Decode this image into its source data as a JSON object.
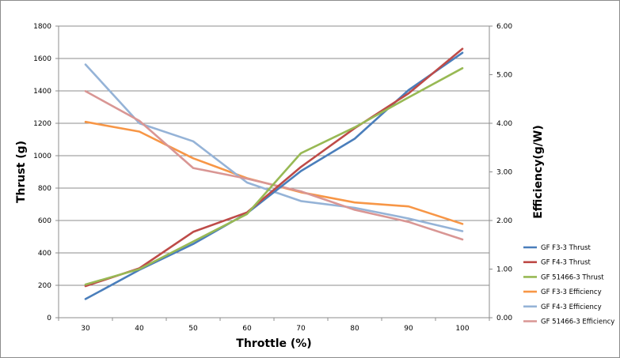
{
  "chart_data": {
    "type": "line",
    "xlabel": "Throttle  (%)",
    "ylabel_left": "Thrust  (g)",
    "ylabel_right": "Efficiency(g/W)",
    "categories": [
      "30",
      "40",
      "50",
      "60",
      "70",
      "80",
      "90",
      "100"
    ],
    "ylim_left": [
      0,
      1800
    ],
    "ylim_right": [
      0,
      6
    ],
    "yticks_left": [
      "0",
      "200",
      "400",
      "600",
      "800",
      "1000",
      "1200",
      "1400",
      "1600",
      "1800"
    ],
    "yticks_right": [
      "0.00",
      "1.00",
      "2.00",
      "3.00",
      "4.00",
      "5.00",
      "6.00"
    ],
    "grid": true,
    "legend_position": "right",
    "series": [
      {
        "name": "GF F3-3 Thrust",
        "axis": "left",
        "color": "#4a7ebb",
        "values": [
          115,
          295,
          455,
          645,
          905,
          1105,
          1405,
          1635
        ]
      },
      {
        "name": "GF F4-3 Thrust",
        "axis": "left",
        "color": "#be4b48",
        "values": [
          195,
          305,
          530,
          650,
          930,
          1170,
          1385,
          1660
        ]
      },
      {
        "name": "GF 51466-3 Thrust",
        "axis": "left",
        "color": "#98b954",
        "values": [
          205,
          300,
          470,
          640,
          1015,
          1175,
          1360,
          1540
        ]
      },
      {
        "name": "GF F3-3 Efficiency",
        "axis": "right",
        "color": "#f79646",
        "values": [
          4.03,
          3.83,
          3.28,
          2.87,
          2.58,
          2.37,
          2.29,
          1.93
        ]
      },
      {
        "name": "GF F4-3 Efficiency",
        "axis": "right",
        "color": "#95b3d7",
        "values": [
          5.21,
          4.0,
          3.63,
          2.78,
          2.4,
          2.26,
          2.04,
          1.78
        ]
      },
      {
        "name": "GF 51466-3 Efficiency",
        "axis": "right",
        "color": "#d99694",
        "values": [
          4.66,
          4.05,
          3.08,
          2.86,
          2.6,
          2.22,
          1.97,
          1.61
        ]
      }
    ]
  }
}
